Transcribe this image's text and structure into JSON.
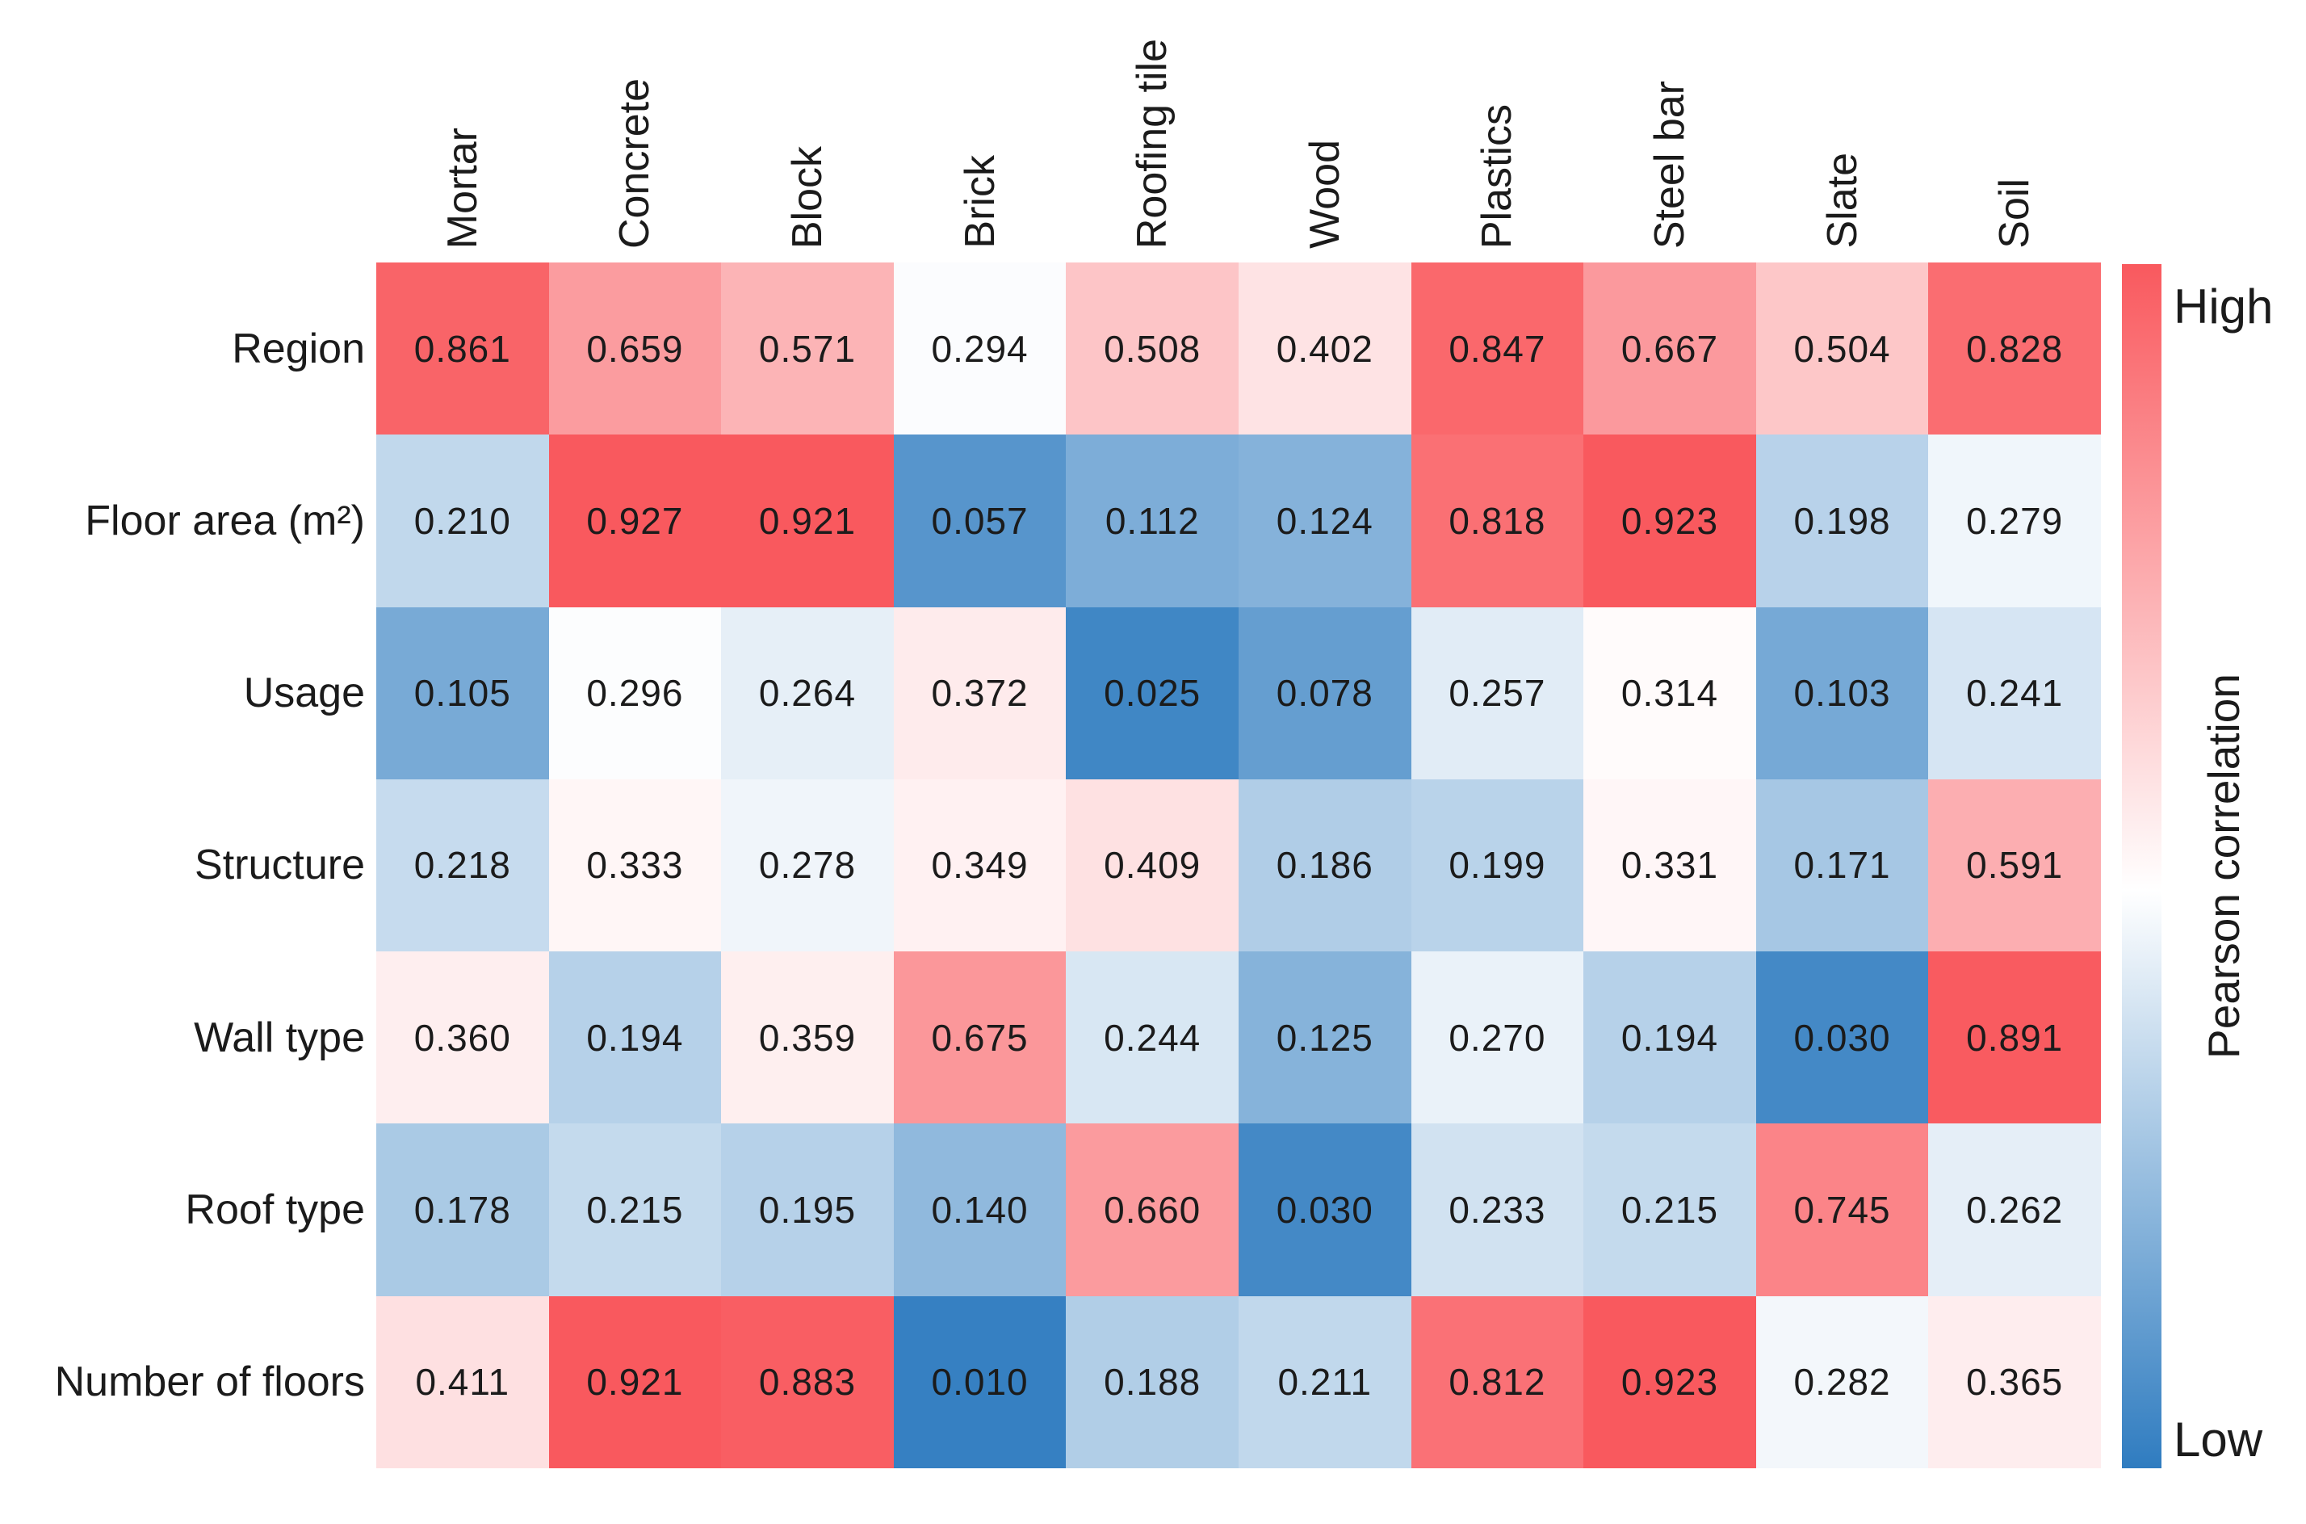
{
  "chart_data": {
    "type": "heatmap",
    "rows": [
      "Region",
      "Floor area (m²)",
      "Usage",
      "Structure",
      "Wall type",
      "Roof type",
      "Number of floors"
    ],
    "columns": [
      "Mortar",
      "Concrete",
      "Block",
      "Brick",
      "Roofing tile",
      "Wood",
      "Plastics",
      "Steel bar",
      "Slate",
      "Soil"
    ],
    "values": [
      [
        0.861,
        0.659,
        0.571,
        0.294,
        0.508,
        0.402,
        0.847,
        0.667,
        0.504,
        0.828
      ],
      [
        0.21,
        0.927,
        0.921,
        0.057,
        0.112,
        0.124,
        0.818,
        0.923,
        0.198,
        0.279
      ],
      [
        0.105,
        0.296,
        0.264,
        0.372,
        0.025,
        0.078,
        0.257,
        0.314,
        0.103,
        0.241
      ],
      [
        0.218,
        0.333,
        0.278,
        0.349,
        0.409,
        0.186,
        0.199,
        0.331,
        0.171,
        0.591
      ],
      [
        0.36,
        0.194,
        0.359,
        0.675,
        0.244,
        0.125,
        0.27,
        0.194,
        0.03,
        0.891
      ],
      [
        0.178,
        0.215,
        0.195,
        0.14,
        0.66,
        0.03,
        0.233,
        0.215,
        0.745,
        0.262
      ],
      [
        0.411,
        0.921,
        0.883,
        0.01,
        0.188,
        0.211,
        0.812,
        0.923,
        0.282,
        0.365
      ]
    ],
    "value_decimals": 3,
    "colorbar": {
      "label": "Pearson correlation",
      "high_label": "High",
      "low_label": "Low",
      "position": "right"
    },
    "color_scale": {
      "high_color": "#f9595e",
      "mid_color": "#ffffff",
      "low_color": "#2f7cc0",
      "min_value": 0.0,
      "center_value": 0.3,
      "max_value": 0.9
    },
    "grid_lines": false,
    "legend_position": "right"
  }
}
